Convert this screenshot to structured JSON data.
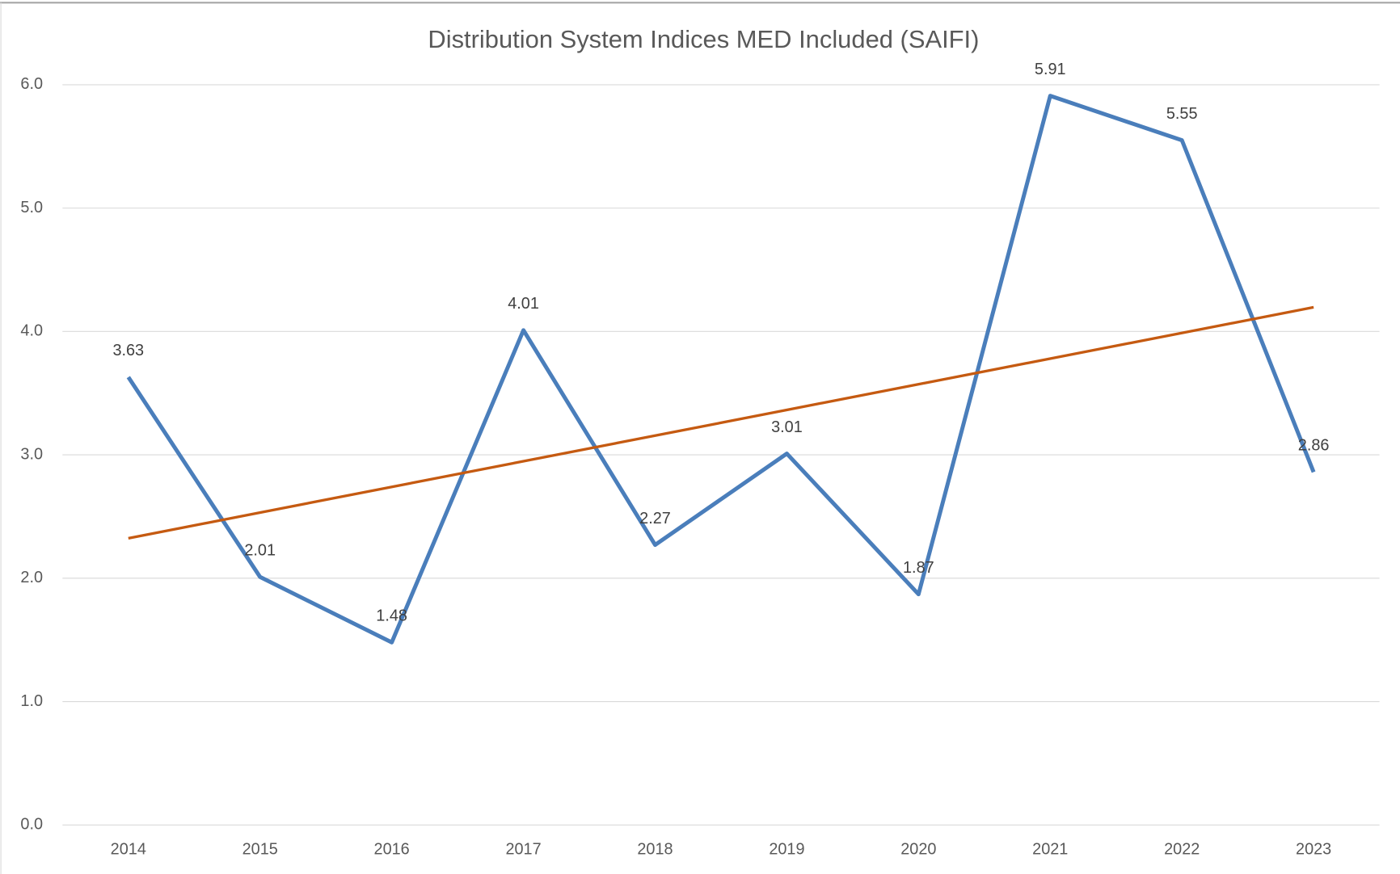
{
  "chart_data": {
    "type": "line",
    "title": "Distribution System Indices MED Included (SAIFI)",
    "categories": [
      "2014",
      "2015",
      "2016",
      "2017",
      "2018",
      "2019",
      "2020",
      "2021",
      "2022",
      "2023"
    ],
    "series": [
      {
        "color": "#4a7ebb",
        "values": [
          3.63,
          2.01,
          1.48,
          4.01,
          2.27,
          3.01,
          1.87,
          5.91,
          5.55,
          2.86
        ]
      }
    ],
    "data_labels": true,
    "trendline": "linear",
    "trendline_color": "#c55a11",
    "ylim": [
      0,
      6
    ],
    "yticks": [
      {
        "value": 0,
        "label": "0.0"
      },
      {
        "value": 1,
        "label": "1.0"
      },
      {
        "value": 2,
        "label": "2.0"
      },
      {
        "value": 3,
        "label": "3.0"
      },
      {
        "value": 4,
        "label": "4.0"
      },
      {
        "value": 5,
        "label": "5.0"
      },
      {
        "value": 6,
        "label": "6.0"
      }
    ],
    "grid": true
  }
}
